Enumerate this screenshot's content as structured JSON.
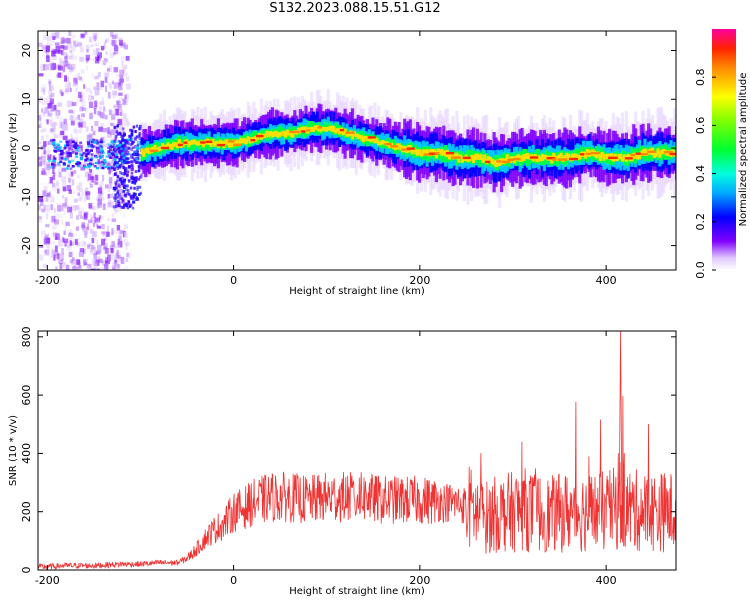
{
  "title": "S132.2023.088.15.51.G12",
  "chart_data": [
    {
      "type": "heatmap",
      "xlabel": "Height of straight line (km)",
      "ylabel": "Frequency (Hz)",
      "xlim": [
        -210,
        475
      ],
      "ylim": [
        -25,
        24
      ],
      "xticks": [
        -200,
        0,
        200,
        400
      ],
      "yticks": [
        -20,
        -10,
        0,
        10,
        20
      ],
      "ridge": {
        "x": [
          -100,
          -80,
          -60,
          -40,
          -20,
          0,
          20,
          40,
          60,
          80,
          100,
          120,
          140,
          160,
          180,
          200,
          220,
          240,
          260,
          280,
          300,
          320,
          340,
          360,
          380,
          400,
          420,
          440,
          460,
          475
        ],
        "frequency": [
          -1,
          0,
          1,
          1,
          1,
          1,
          2,
          3,
          3,
          4,
          4,
          3,
          2,
          1,
          0,
          -1,
          -1,
          -2,
          -2,
          -3,
          -2,
          -2,
          -2,
          -2,
          -1,
          -2,
          -2,
          -1,
          -1,
          -1
        ]
      },
      "colorbar": {
        "label": "Normalized spectral amplitude",
        "range": [
          0,
          1
        ],
        "ticks": [
          "0.0",
          "0.2",
          "0.4",
          "0.6",
          "0.8"
        ]
      }
    },
    {
      "type": "line",
      "xlabel": "Height of straight line (km)",
      "ylabel": "SNR (10 * v/v)",
      "xlim": [
        -210,
        475
      ],
      "ylim": [
        0,
        820
      ],
      "xticks": [
        -200,
        0,
        200,
        400
      ],
      "yticks": [
        0,
        200,
        400,
        600,
        800
      ],
      "color": "#ee3333",
      "series": [
        {
          "x": [
            -210,
            -180,
            -150,
            -120,
            -100,
            -80,
            -60,
            -50,
            -40,
            -30,
            -20,
            -10,
            0,
            10,
            20,
            30,
            40,
            60,
            80,
            100,
            120,
            140,
            160,
            180,
            200,
            220,
            240,
            250,
            260,
            270,
            280,
            300,
            310,
            320,
            340,
            360,
            380,
            400,
            410,
            415,
            420,
            440,
            460,
            475
          ],
          "y": [
            10,
            15,
            15,
            20,
            20,
            25,
            25,
            40,
            70,
            110,
            140,
            160,
            200,
            210,
            230,
            240,
            250,
            250,
            240,
            250,
            250,
            250,
            240,
            240,
            240,
            235,
            230,
            220,
            200,
            180,
            190,
            200,
            210,
            200,
            190,
            200,
            200,
            200,
            210,
            230,
            210,
            200,
            200,
            200
          ]
        }
      ]
    }
  ]
}
